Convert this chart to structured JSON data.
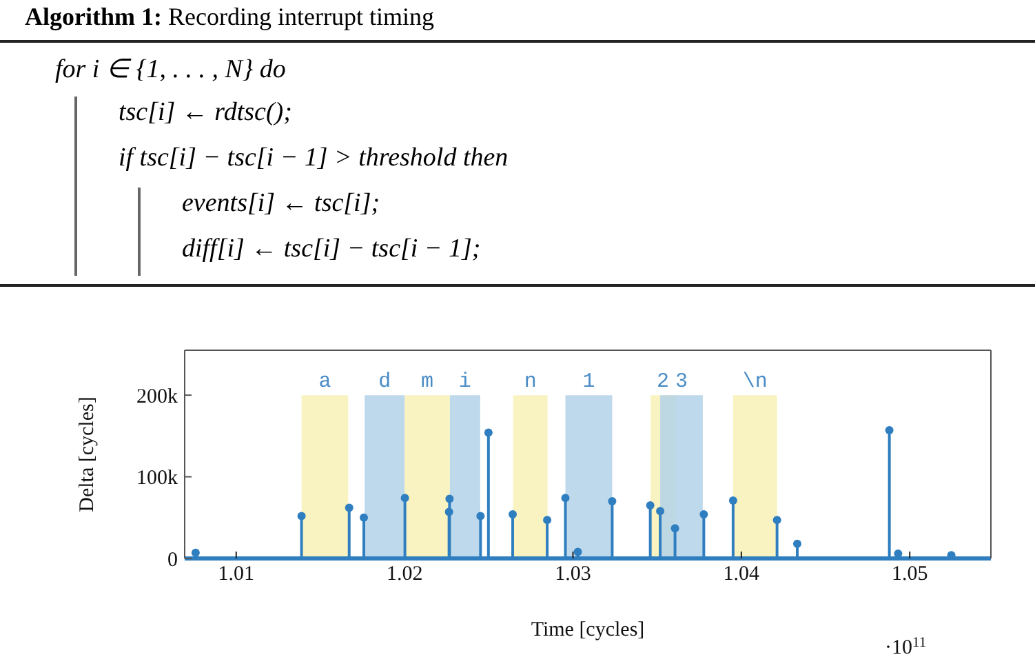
{
  "chart_data": [
    {
      "type": "other",
      "title": "Algorithm 1: Recording interrupt timing",
      "annotations": [
        "for i ∈ {1, . . . , N} do",
        "tsc[i] ← rdtsc();",
        "if tsc[i] − tsc[i − 1] > threshold then",
        "events[i] ← tsc[i];",
        "diff[i] ← tsc[i] − tsc[i − 1];"
      ]
    },
    {
      "type": "lollipop",
      "xlabel": "Time [cycles]",
      "ylabel": "Delta [cycles]",
      "annotations": [
        "·10$^{11}$"
      ],
      "x": [
        1.00759,
        1.01388,
        1.01671,
        1.01758,
        1.02002,
        1.02264,
        1.02267,
        1.02451,
        1.02498,
        1.02642,
        1.02847,
        1.02955,
        1.03029,
        1.03233,
        1.03459,
        1.03518,
        1.03606,
        1.03777,
        1.03951,
        1.04212,
        1.04332,
        1.04879,
        1.04931,
        1.05247
      ],
      "series": [
        {
          "color": "#2f7fc0",
          "values": [
            7000,
            52000,
            62000,
            50000,
            74000,
            57000,
            73000,
            52000,
            154000,
            54000,
            47000,
            74000,
            8000,
            70000,
            65000,
            58000,
            37000,
            54000,
            71000,
            47000,
            18000,
            157000,
            6000,
            4000
          ]
        }
      ],
      "marker": "circle",
      "xlim": [
        1.00694,
        1.05482
      ],
      "xticks": [
        1.01,
        1.02,
        1.03,
        1.04,
        1.05
      ],
      "ylim": [
        0,
        255000
      ],
      "yticks": [
        0,
        {
          "value": 100000,
          "label": "100k"
        },
        {
          "value": 200000,
          "label": "200k"
        }
      ],
      "bands": [
        {
          "axis": "x",
          "from": 1.01388,
          "to": 1.01665,
          "label": "a",
          "color": "#f7f1b5"
        },
        {
          "axis": "x",
          "from": 1.01763,
          "to": 1.02,
          "label": "d",
          "color": "#b3d1e9"
        },
        {
          "axis": "x",
          "from": 1.02,
          "to": 1.02269,
          "label": "m",
          "color": "#f7f1b5"
        },
        {
          "axis": "x",
          "from": 1.02269,
          "to": 1.02449,
          "label": "i",
          "color": "#b3d1e9"
        },
        {
          "axis": "x",
          "from": 1.02645,
          "to": 1.02849,
          "label": "n",
          "color": "#f7f1b5"
        },
        {
          "axis": "x",
          "from": 1.02955,
          "to": 1.03233,
          "label": "1",
          "color": "#b3d1e9"
        },
        {
          "axis": "x",
          "from": 1.03461,
          "to": 1.03608,
          "label": "2",
          "color": "#f7f1b5"
        },
        {
          "axis": "x",
          "from": 1.03518,
          "to": 1.03771,
          "label": "3",
          "color": "#b3d1e9"
        },
        {
          "axis": "x",
          "from": 1.03951,
          "to": 1.04212,
          "label": "\\n",
          "color": "#f7f1b5"
        }
      ]
    }
  ]
}
